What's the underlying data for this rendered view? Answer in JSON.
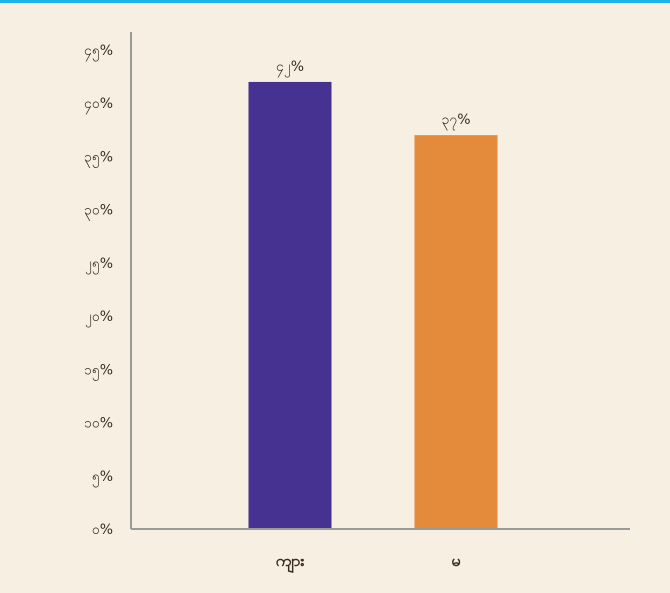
{
  "chart_data": {
    "type": "bar",
    "categories": [
      "ကျား",
      "မ"
    ],
    "values": [
      42,
      37
    ],
    "value_labels": [
      "၄၂%",
      "၃၇%"
    ],
    "colors": [
      "#463391",
      "#e38a3b"
    ],
    "ylim": [
      0,
      45
    ],
    "yticks": [
      {
        "value": 0,
        "label": "၀%"
      },
      {
        "value": 5,
        "label": "၅%"
      },
      {
        "value": 10,
        "label": "၁၀%"
      },
      {
        "value": 15,
        "label": "၁၅%"
      },
      {
        "value": 20,
        "label": "၂၀%"
      },
      {
        "value": 25,
        "label": "၂၅%"
      },
      {
        "value": 30,
        "label": "၃၀%"
      },
      {
        "value": 35,
        "label": "၃၅%"
      },
      {
        "value": 40,
        "label": "၄၀%"
      },
      {
        "value": 45,
        "label": "၄၅%"
      }
    ],
    "title": "",
    "xlabel": "",
    "ylabel": "",
    "grid": false,
    "legend": "none"
  },
  "style": {
    "background": "#f7efe1",
    "top_rule": "#1fb4e8",
    "axis_color": "#9a9a9a"
  }
}
